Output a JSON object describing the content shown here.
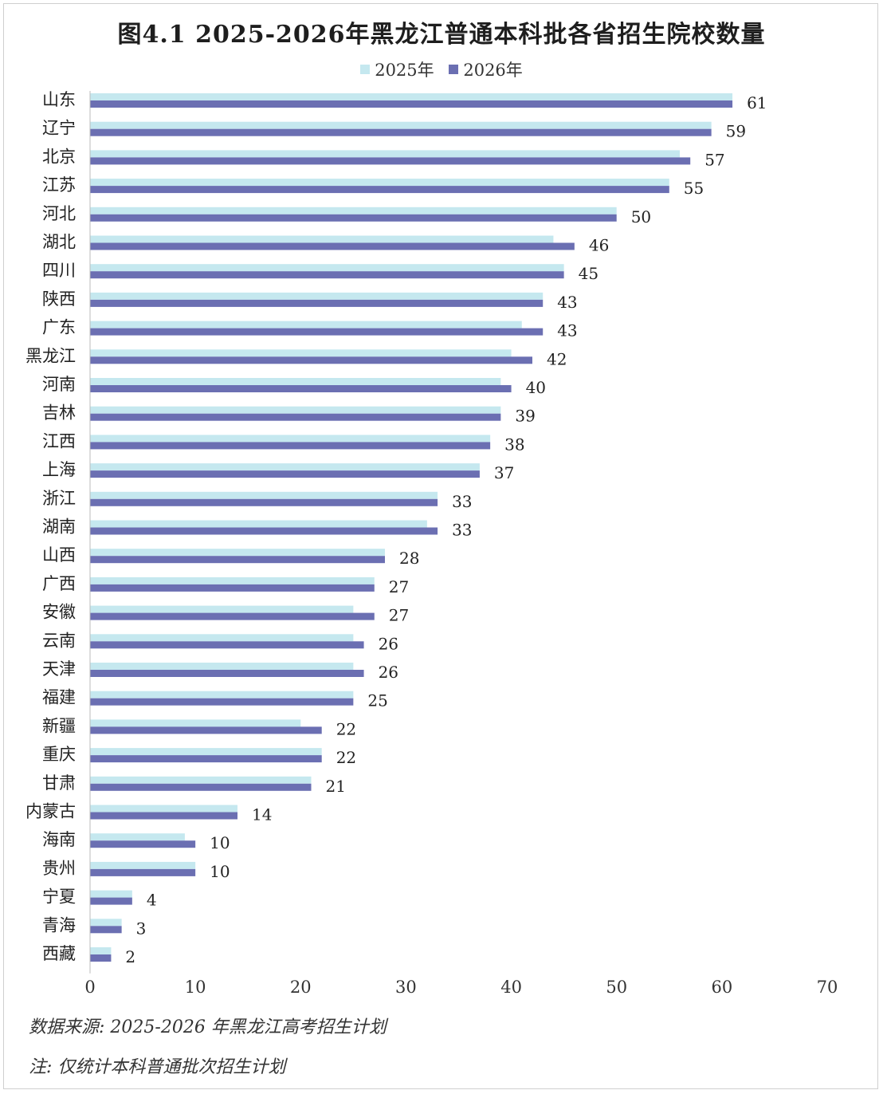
{
  "title": "图4.1  2025-2026年黑龙江普通本科批各省招生院校数量",
  "notes": {
    "source": "数据来源:  2025-2026 年黑龙江高考招生计划",
    "note": "注:  仅统计本科普通批次招生计划"
  },
  "colors": {
    "series_2025": "#c5e8ef",
    "series_2026": "#6b6fb2"
  },
  "chart_data": {
    "type": "bar",
    "orientation": "horizontal",
    "categories": [
      "山东",
      "辽宁",
      "北京",
      "江苏",
      "河北",
      "湖北",
      "四川",
      "陕西",
      "广东",
      "黑龙江",
      "河南",
      "吉林",
      "江西",
      "上海",
      "浙江",
      "湖南",
      "山西",
      "广西",
      "安徽",
      "云南",
      "天津",
      "福建",
      "新疆",
      "重庆",
      "甘肃",
      "内蒙古",
      "海南",
      "贵州",
      "宁夏",
      "青海",
      "西藏"
    ],
    "series": [
      {
        "name": "2025年",
        "values": [
          61,
          59,
          56,
          55,
          50,
          44,
          45,
          43,
          41,
          40,
          39,
          39,
          38,
          37,
          33,
          32,
          28,
          27,
          25,
          25,
          25,
          25,
          20,
          22,
          21,
          14,
          9,
          10,
          4,
          3,
          2
        ]
      },
      {
        "name": "2026年",
        "values": [
          61,
          59,
          57,
          55,
          50,
          46,
          45,
          43,
          43,
          42,
          40,
          39,
          38,
          37,
          33,
          33,
          28,
          27,
          27,
          26,
          26,
          25,
          22,
          22,
          21,
          14,
          10,
          10,
          4,
          3,
          2
        ]
      }
    ],
    "xlim": [
      0,
      70
    ],
    "xticks": [
      0,
      10,
      20,
      30,
      40,
      50,
      60,
      70
    ],
    "data_labels_series": "2026年",
    "grid": false,
    "legend": "top-center"
  }
}
